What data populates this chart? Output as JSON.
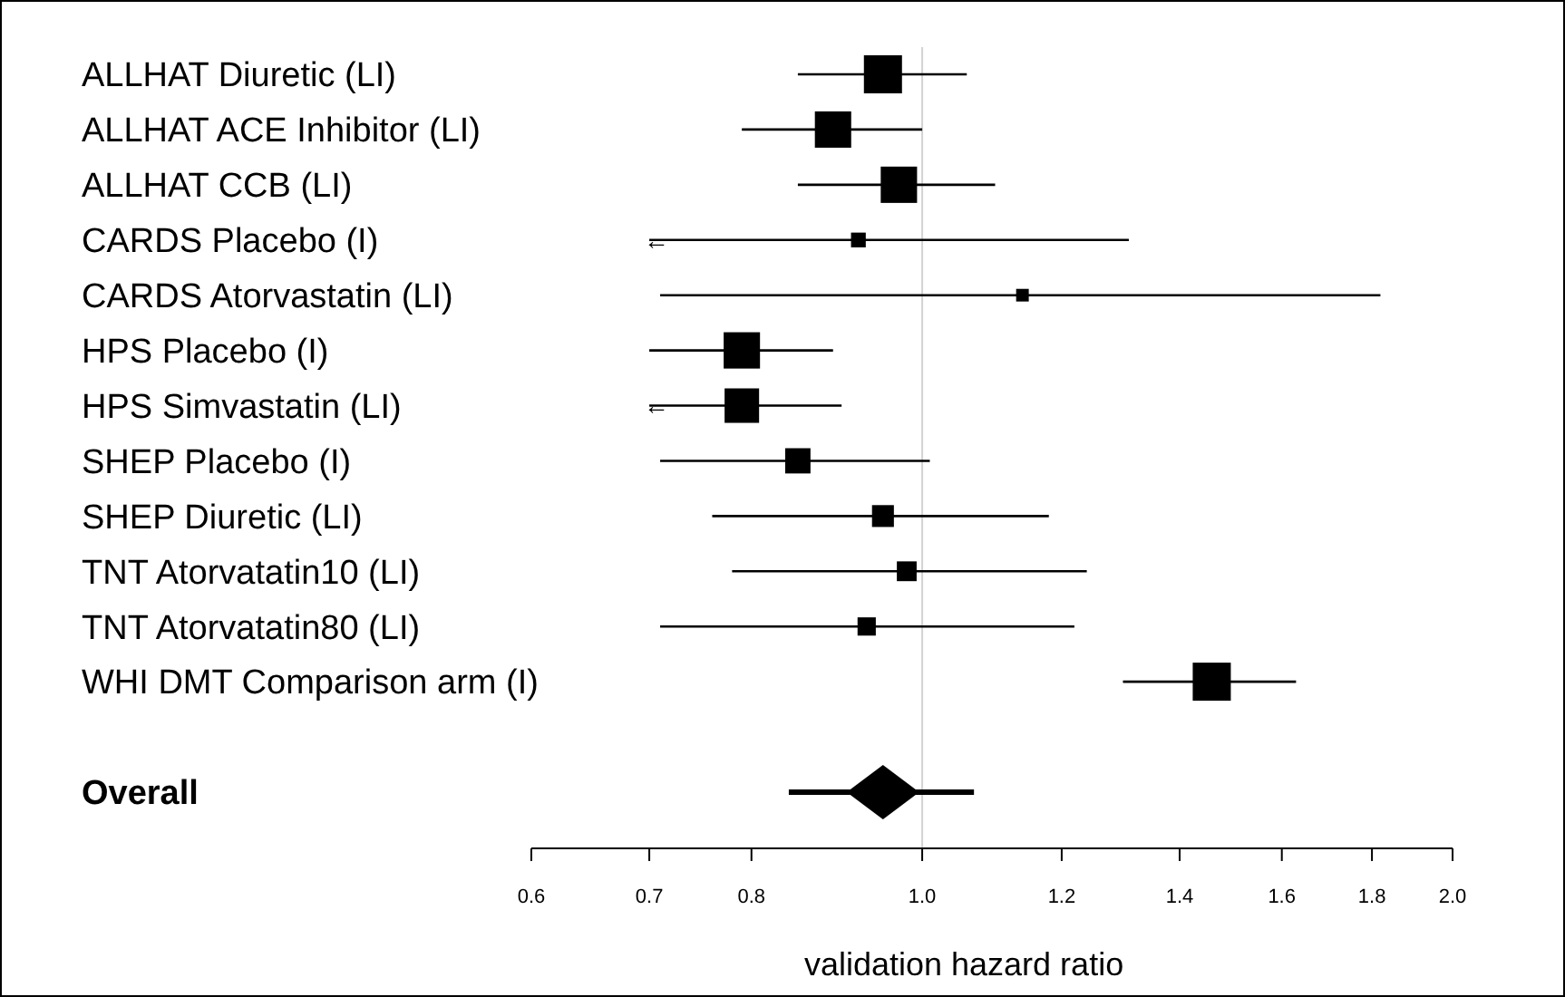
{
  "chart_data": {
    "type": "scatter",
    "orientation": "horizontal",
    "xlabel": "validation hazard ratio",
    "log": "x",
    "grid": false,
    "categories": [
      "ALLHAT Diuretic (LI)",
      "ALLHAT ACE Inhibitor (LI)",
      "ALLHAT CCB (LI)",
      "CARDS Placebo (I)",
      "CARDS Atorvastatin (LI)",
      "HPS Placebo (I)",
      "HPS Simvastatin (LI)",
      "SHEP Placebo (I)",
      "SHEP Diuretic (LI)",
      "TNT Atorvatatin10 (LI)",
      "TNT Atorvatatin80 (LI)",
      "WHI DMT Comparison arm (I)",
      null,
      "Overall"
    ],
    "xlim": [
      0.6,
      2.0
    ],
    "xticks": [
      {
        "value": 0.6,
        "label": "0.6"
      },
      {
        "value": 0.7,
        "label": "0.7"
      },
      {
        "value": 0.8,
        "label": "0.8"
      },
      {
        "value": 1.0,
        "label": "1.0"
      },
      {
        "value": 1.2,
        "label": "1.2"
      },
      {
        "value": 1.4,
        "label": "1.4"
      },
      {
        "value": 1.6,
        "label": "1.6"
      },
      {
        "value": 1.8,
        "label": "1.8"
      },
      {
        "value": 2.0,
        "label": "2.0"
      }
    ],
    "series": [
      {
        "color": "#000000",
        "marker": "square",
        "values": [
          0.95,
          0.89,
          0.97,
          0.92,
          1.14,
          0.79,
          0.79,
          0.85,
          0.95,
          0.98,
          0.93,
          1.46,
          null,
          null
        ],
        "errors": [
          [
            0.85,
            1.06
          ],
          [
            0.79,
            1.0
          ],
          [
            0.85,
            1.1
          ],
          [
            0.7,
            1.31
          ],
          [
            0.71,
            1.82
          ],
          [
            0.7,
            0.89
          ],
          [
            0.7,
            0.9
          ],
          [
            0.71,
            1.01
          ],
          [
            0.76,
            1.18
          ],
          [
            0.78,
            1.24
          ],
          [
            0.71,
            1.22
          ],
          [
            1.3,
            1.63
          ],
          null,
          null
        ],
        "sizes": [
          1,
          0.91,
          0.91,
          0.15,
          0.11,
          0.91,
          0.82,
          0.44,
          0.33,
          0.27,
          0.23,
          1,
          null,
          null
        ]
      },
      {
        "color": "#000000",
        "marker": "diamond",
        "values": [
          null,
          null,
          null,
          null,
          null,
          null,
          null,
          null,
          null,
          null,
          null,
          null,
          null,
          0.95
        ],
        "errors": [
          null,
          null,
          null,
          null,
          null,
          null,
          null,
          null,
          null,
          null,
          null,
          null,
          null,
          [
            0.84,
            1.07
          ]
        ]
      }
    ],
    "ref_lines": [
      {
        "axis": "x",
        "value": 1.0,
        "color": "#d3d3d3"
      }
    ],
    "annotations": [
      {
        "text": "←",
        "x": 0.7,
        "y": "CARDS Placebo (I)"
      },
      {
        "text": "←",
        "x": 0.7,
        "y": "HPS Simvastatin (LI)"
      }
    ]
  }
}
